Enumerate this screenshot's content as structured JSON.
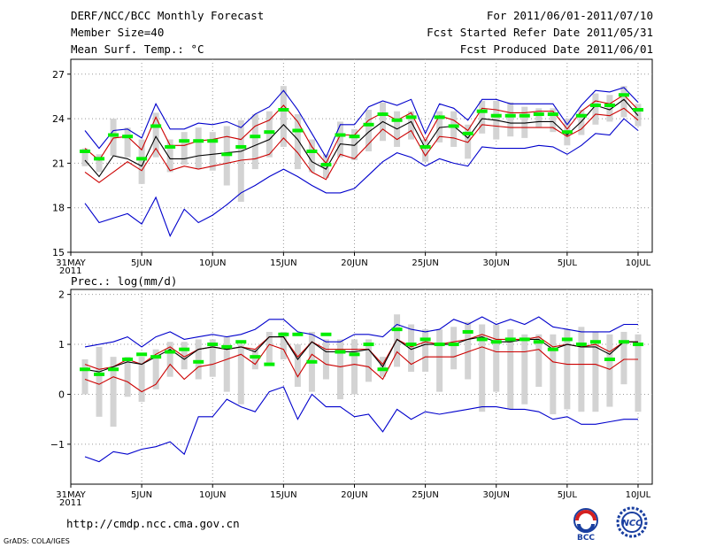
{
  "header": {
    "title": "DERF/NCC/BCC Monthly Forecast",
    "member_size": "Member Size=40",
    "variable": "Mean Surf. Temp.: °C",
    "forecast_period": "For 2011/06/01-2011/07/10",
    "start_date": "Fcst Started Refer Date 2011/05/31",
    "produced_date": "Fcst Produced Date 2011/06/01"
  },
  "footer": {
    "url": "http://cmdp.ncc.cma.gov.cn",
    "credit": "GrADS: COLA/IGES",
    "logo1_text": "BCC",
    "logo2_text": "NCC"
  },
  "colors": {
    "max_min": "#0000cc",
    "percentile": "#cc0000",
    "mean": "#000000",
    "median": "#00ee00",
    "spread": "#d3d3d3",
    "grid": "#999999"
  },
  "chart_data": [
    {
      "type": "line",
      "title": "Mean Surf. Temp.: °C",
      "xlabel": "",
      "ylabel": "",
      "x_ticks": [
        {
          "day": 0,
          "label": "31MAY"
        },
        {
          "day": 5,
          "label": "5JUN"
        },
        {
          "day": 10,
          "label": "10JUN"
        },
        {
          "day": 15,
          "label": "15JUN"
        },
        {
          "day": 20,
          "label": "20JUN"
        },
        {
          "day": 25,
          "label": "25JUN"
        },
        {
          "day": 30,
          "label": "30JUN"
        },
        {
          "day": 35,
          "label": "5JUL"
        },
        {
          "day": 40,
          "label": "10JUL"
        }
      ],
      "x_sub": "2011",
      "xlim": [
        0,
        41
      ],
      "ylim": [
        15,
        28
      ],
      "y_ticks": [
        15,
        18,
        21,
        24,
        27
      ],
      "days": [
        1,
        2,
        3,
        4,
        5,
        6,
        7,
        8,
        9,
        10,
        11,
        12,
        13,
        14,
        15,
        16,
        17,
        18,
        19,
        20,
        21,
        22,
        23,
        24,
        25,
        26,
        27,
        28,
        29,
        30,
        31,
        32,
        33,
        34,
        35,
        36,
        37,
        38,
        39,
        40
      ],
      "series": [
        {
          "name": "max",
          "color": "#0000cc",
          "values": [
            23.2,
            22.0,
            23.2,
            23.3,
            22.7,
            25.0,
            23.3,
            23.3,
            23.7,
            23.6,
            23.8,
            23.4,
            24.3,
            24.8,
            25.9,
            24.6,
            23.0,
            21.4,
            23.6,
            23.6,
            24.8,
            25.2,
            24.9,
            25.3,
            23.0,
            25.0,
            24.7,
            23.9,
            25.3,
            25.3,
            25.0,
            25.0,
            25.0,
            25.0,
            23.6,
            24.9,
            25.9,
            25.8,
            26.1,
            25.1
          ]
        },
        {
          "name": "p90",
          "color": "#cc0000",
          "values": [
            22.0,
            21.2,
            22.7,
            22.8,
            21.9,
            24.1,
            22.2,
            22.2,
            22.5,
            22.6,
            22.8,
            22.6,
            23.5,
            23.9,
            24.9,
            23.8,
            22.1,
            21.0,
            22.9,
            22.9,
            23.9,
            24.4,
            23.9,
            24.4,
            22.5,
            24.2,
            23.9,
            23.2,
            24.7,
            24.6,
            24.4,
            24.4,
            24.5,
            24.5,
            23.3,
            24.5,
            25.2,
            25.0,
            25.6,
            24.6
          ]
        },
        {
          "name": "mean",
          "color": "#000000",
          "values": [
            21.2,
            20.1,
            21.5,
            21.3,
            20.8,
            22.8,
            21.3,
            21.3,
            21.5,
            21.6,
            21.7,
            21.8,
            22.2,
            22.6,
            23.6,
            22.6,
            21.1,
            20.6,
            22.3,
            22.2,
            23.1,
            23.8,
            23.3,
            23.8,
            22.0,
            23.4,
            23.5,
            22.7,
            24.0,
            23.9,
            23.7,
            23.7,
            23.8,
            23.8,
            22.9,
            23.8,
            24.9,
            24.6,
            25.3,
            24.2
          ]
        },
        {
          "name": "p10",
          "color": "#cc0000",
          "values": [
            20.4,
            19.7,
            20.4,
            21.1,
            20.5,
            22.0,
            20.5,
            20.8,
            20.6,
            20.8,
            21.0,
            21.2,
            21.3,
            21.6,
            22.7,
            21.7,
            20.4,
            19.9,
            21.6,
            21.3,
            22.3,
            23.3,
            22.6,
            23.2,
            21.5,
            22.8,
            22.7,
            22.4,
            23.6,
            23.5,
            23.4,
            23.4,
            23.4,
            23.4,
            22.8,
            23.3,
            24.3,
            24.2,
            24.7,
            23.9
          ]
        },
        {
          "name": "min",
          "color": "#0000cc",
          "values": [
            18.3,
            17.0,
            17.3,
            17.6,
            16.9,
            18.7,
            16.1,
            17.9,
            17.0,
            17.5,
            18.2,
            19.0,
            19.5,
            20.1,
            20.6,
            20.1,
            19.5,
            19.0,
            19.0,
            19.3,
            20.2,
            21.1,
            21.7,
            21.4,
            20.8,
            21.3,
            21.0,
            20.8,
            22.1,
            22.0,
            22.0,
            22.0,
            22.2,
            22.1,
            21.6,
            22.2,
            23.0,
            22.9,
            24.0,
            23.2
          ]
        }
      ],
      "median": [
        21.8,
        21.3,
        22.9,
        22.8,
        21.3,
        23.5,
        22.1,
        22.5,
        22.5,
        22.5,
        21.6,
        22.1,
        22.8,
        23.1,
        24.6,
        23.2,
        21.8,
        20.9,
        22.9,
        22.8,
        23.6,
        24.3,
        23.9,
        24.1,
        22.1,
        24.1,
        23.5,
        23.0,
        24.5,
        24.2,
        24.2,
        24.2,
        24.3,
        24.3,
        23.1,
        24.2,
        24.9,
        24.9,
        25.6,
        24.6
      ],
      "spread_low": [
        20.8,
        20.4,
        21.5,
        21.4,
        19.6,
        21.4,
        20.4,
        20.9,
        20.6,
        20.5,
        19.5,
        18.4,
        20.6,
        21.4,
        22.1,
        20.6,
        20.4,
        20.0,
        21.4,
        21.2,
        21.8,
        22.5,
        22.1,
        22.6,
        21.1,
        22.4,
        22.1,
        21.3,
        23.0,
        22.6,
        22.8,
        22.7,
        23.4,
        23.1,
        22.2,
        22.9,
        23.6,
        23.8,
        24.1,
        23.5
      ],
      "spread_high": [
        22.0,
        21.6,
        24.0,
        23.4,
        22.6,
        24.4,
        22.6,
        23.1,
        23.4,
        23.1,
        23.5,
        23.9,
        24.3,
        24.5,
        26.2,
        24.3,
        22.6,
        21.6,
        23.8,
        23.3,
        24.6,
        25.1,
        24.5,
        24.5,
        22.6,
        24.5,
        24.5,
        23.6,
        25.2,
        25.2,
        25.1,
        24.8,
        24.7,
        24.7,
        24.0,
        24.6,
        25.7,
        25.6,
        26.2,
        25.0
      ]
    },
    {
      "type": "line",
      "title": "Prec.: log(mm/d)",
      "xlabel": "",
      "ylabel": "",
      "x_ticks": [
        {
          "day": 0,
          "label": "31MAY"
        },
        {
          "day": 5,
          "label": "5JUN"
        },
        {
          "day": 10,
          "label": "10JUN"
        },
        {
          "day": 15,
          "label": "15JUN"
        },
        {
          "day": 20,
          "label": "20JUN"
        },
        {
          "day": 25,
          "label": "25JUN"
        },
        {
          "day": 30,
          "label": "30JUN"
        },
        {
          "day": 35,
          "label": "5JUL"
        },
        {
          "day": 40,
          "label": "10JUL"
        }
      ],
      "x_sub": "2011",
      "xlim": [
        0,
        41
      ],
      "ylim": [
        -1.8,
        2.1
      ],
      "y_ticks": [
        -1,
        0,
        1,
        2
      ],
      "days": [
        1,
        2,
        3,
        4,
        5,
        6,
        7,
        8,
        9,
        10,
        11,
        12,
        13,
        14,
        15,
        16,
        17,
        18,
        19,
        20,
        21,
        22,
        23,
        24,
        25,
        26,
        27,
        28,
        29,
        30,
        31,
        32,
        33,
        34,
        35,
        36,
        37,
        38,
        39,
        40
      ],
      "series": [
        {
          "name": "max",
          "color": "#0000cc",
          "values": [
            0.95,
            1.0,
            1.05,
            1.15,
            0.95,
            1.15,
            1.25,
            1.1,
            1.15,
            1.2,
            1.15,
            1.2,
            1.3,
            1.5,
            1.5,
            1.25,
            1.2,
            1.05,
            1.05,
            1.2,
            1.2,
            1.15,
            1.4,
            1.3,
            1.25,
            1.3,
            1.5,
            1.4,
            1.55,
            1.4,
            1.5,
            1.4,
            1.55,
            1.35,
            1.3,
            1.25,
            1.25,
            1.25,
            1.4,
            1.4
          ]
        },
        {
          "name": "p90",
          "color": "#cc0000",
          "values": [
            0.6,
            0.5,
            0.55,
            0.7,
            0.6,
            0.8,
            0.95,
            0.75,
            0.9,
            0.95,
            0.9,
            0.95,
            0.9,
            1.15,
            1.15,
            0.75,
            1.05,
            0.9,
            0.9,
            0.9,
            0.9,
            0.6,
            1.1,
            0.95,
            1.05,
            1.0,
            1.05,
            1.1,
            1.2,
            1.1,
            1.1,
            1.1,
            1.15,
            0.95,
            1.0,
            0.95,
            1.0,
            0.85,
            1.05,
            1.05
          ]
        },
        {
          "name": "mean",
          "color": "#000000",
          "values": [
            0.5,
            0.45,
            0.55,
            0.65,
            0.6,
            0.75,
            0.9,
            0.7,
            0.9,
            0.95,
            0.9,
            0.95,
            0.85,
            1.15,
            1.15,
            0.7,
            1.05,
            0.85,
            0.85,
            0.85,
            0.9,
            0.55,
            1.1,
            0.9,
            1.0,
            1.0,
            1.0,
            1.1,
            1.15,
            1.05,
            1.05,
            1.1,
            1.1,
            0.9,
            1.0,
            0.95,
            0.95,
            0.8,
            1.05,
            1.05
          ]
        },
        {
          "name": "p10",
          "color": "#cc0000",
          "values": [
            0.3,
            0.2,
            0.35,
            0.25,
            0.05,
            0.2,
            0.6,
            0.3,
            0.55,
            0.6,
            0.7,
            0.8,
            0.6,
            1.0,
            0.9,
            0.35,
            0.8,
            0.6,
            0.55,
            0.6,
            0.55,
            0.3,
            0.85,
            0.6,
            0.75,
            0.75,
            0.75,
            0.85,
            0.95,
            0.85,
            0.85,
            0.85,
            0.9,
            0.65,
            0.6,
            0.6,
            0.6,
            0.5,
            0.7,
            0.7
          ]
        },
        {
          "name": "min",
          "color": "#0000cc",
          "values": [
            -1.25,
            -1.35,
            -1.15,
            -1.2,
            -1.1,
            -1.05,
            -0.95,
            -1.2,
            -0.45,
            -0.45,
            -0.1,
            -0.25,
            -0.35,
            0.05,
            0.15,
            -0.5,
            0.0,
            -0.25,
            -0.25,
            -0.45,
            -0.4,
            -0.75,
            -0.3,
            -0.5,
            -0.35,
            -0.4,
            -0.35,
            -0.3,
            -0.25,
            -0.25,
            -0.3,
            -0.3,
            -0.35,
            -0.5,
            -0.45,
            -0.6,
            -0.6,
            -0.55,
            -0.5,
            -0.5
          ]
        }
      ],
      "median": [
        0.5,
        0.4,
        0.5,
        0.7,
        0.8,
        0.75,
        0.85,
        0.9,
        0.65,
        1.0,
        0.95,
        1.05,
        0.75,
        0.6,
        1.2,
        1.2,
        0.65,
        1.2,
        0.85,
        0.8,
        1.0,
        0.5,
        1.3,
        1.0,
        1.1,
        1.0,
        1.0,
        1.25,
        1.1,
        1.05,
        1.1,
        1.1,
        1.05,
        0.9,
        1.1,
        1.0,
        1.05,
        0.7,
        1.05,
        1.0
      ],
      "spread_low": [
        0.0,
        -0.45,
        -0.65,
        -0.05,
        -0.15,
        0.1,
        0.35,
        0.5,
        0.3,
        0.35,
        0.05,
        -0.2,
        0.5,
        0.6,
        0.7,
        0.15,
        0.05,
        0.3,
        -0.1,
        0.0,
        0.25,
        0.35,
        0.55,
        0.45,
        0.45,
        0.05,
        0.5,
        0.3,
        -0.35,
        0.05,
        -0.3,
        -0.2,
        0.15,
        -0.4,
        -0.3,
        -0.35,
        -0.35,
        -0.25,
        0.2,
        -0.35
      ],
      "spread_high": [
        0.7,
        0.95,
        0.75,
        0.75,
        0.75,
        0.9,
        1.05,
        1.05,
        1.1,
        1.1,
        1.15,
        1.0,
        0.9,
        1.25,
        1.25,
        1.0,
        1.25,
        1.1,
        1.1,
        1.1,
        1.1,
        0.75,
        1.6,
        1.4,
        1.3,
        1.3,
        1.35,
        1.45,
        1.4,
        1.4,
        1.3,
        1.2,
        1.2,
        1.2,
        1.3,
        1.35,
        1.25,
        1.2,
        1.25,
        1.2
      ]
    }
  ]
}
